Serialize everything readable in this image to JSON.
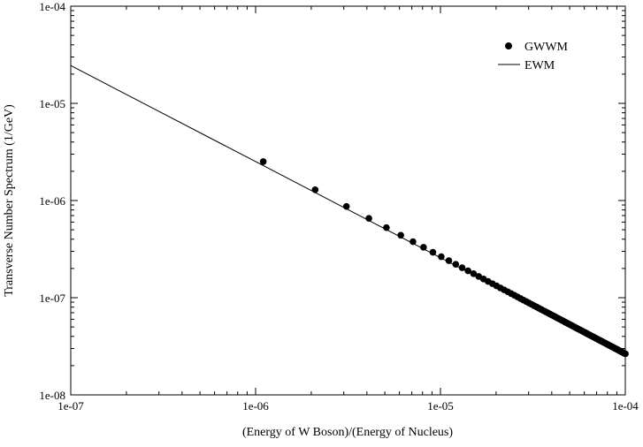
{
  "chart_data": {
    "type": "scatter",
    "xlabel": "(Energy of W Boson)/(Energy of Nucleus)",
    "ylabel": "Transverse Number Spectrum (1/GeV)",
    "xscale": "log",
    "yscale": "log",
    "xlim": [
      1e-07,
      0.0001
    ],
    "ylim": [
      1e-08,
      0.0001
    ],
    "xticks": [
      1e-07,
      1e-06,
      1e-05,
      0.0001
    ],
    "xtick_labels": [
      "1e-07",
      "1e-06",
      "1e-05",
      "1e-04"
    ],
    "yticks": [
      1e-08,
      1e-07,
      1e-06,
      1e-05,
      0.0001
    ],
    "ytick_labels": [
      "1e-08",
      "1e-07",
      "1e-06",
      "1e-05",
      "1e-04"
    ],
    "grid": false,
    "legend": {
      "position": "top-right",
      "entries": [
        "GWWM",
        "EWM"
      ]
    },
    "series": [
      {
        "name": "GWWM",
        "marker": "filled-circle",
        "color": "#000000",
        "sampling": {
          "x_start": 1.1e-06,
          "x_step": 1e-06,
          "count": 100
        },
        "power_law": {
          "amplitude": 2.35e-06,
          "x_ref": 1.1e-06,
          "exponent": -1.0
        },
        "approach_to_ewm": {
          "ratio_at_start": 1.1,
          "ratio_at_end": 1.0
        }
      },
      {
        "name": "EWM",
        "style": "line",
        "color": "#000000",
        "x": [
          1e-07,
          0.0001
        ],
        "y": [
          2.45e-05,
          2.65e-08
        ]
      }
    ]
  }
}
